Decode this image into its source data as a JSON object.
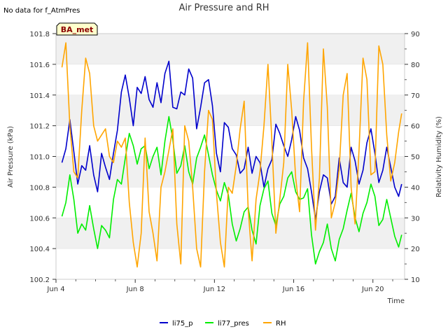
{
  "chart_data": {
    "type": "line",
    "title": "Air Pressure and RH",
    "note": "No data for f_AtmPres",
    "badge": "BA_met",
    "xlabel": "Time",
    "ylabel_left": "Air Pressure (kPa)",
    "ylabel_right": "Relativity Humidity (%)",
    "xlim": [
      4,
      21.6
    ],
    "ylim_left": [
      100.2,
      101.8
    ],
    "ylim_right": [
      10,
      90
    ],
    "x_ticks": [
      {
        "value": 4,
        "label": "Jun 4"
      },
      {
        "value": 8,
        "label": "Jun 8"
      },
      {
        "value": 12,
        "label": "Jun 12"
      },
      {
        "value": 16,
        "label": "Jun 16"
      },
      {
        "value": 20,
        "label": "Jun 20"
      }
    ],
    "y_ticks_left": [
      "100.2",
      "100.4",
      "100.6",
      "100.8",
      "101.0",
      "101.2",
      "101.4",
      "101.6",
      "101.8"
    ],
    "y_ticks_right": [
      "10",
      "20",
      "30",
      "40",
      "50",
      "60",
      "70",
      "80",
      "90"
    ],
    "grid": "horizontal bands",
    "legend_position": "bottom-center",
    "series": [
      {
        "name": "li75_p",
        "axis": "left",
        "color": "#0000cc",
        "x": [
          4.3,
          4.5,
          4.7,
          4.9,
          5.1,
          5.3,
          5.5,
          5.7,
          5.9,
          6.1,
          6.3,
          6.5,
          6.7,
          6.9,
          7.1,
          7.3,
          7.5,
          7.7,
          7.9,
          8.1,
          8.3,
          8.5,
          8.7,
          8.9,
          9.1,
          9.3,
          9.5,
          9.7,
          9.9,
          10.1,
          10.3,
          10.5,
          10.7,
          10.9,
          11.1,
          11.3,
          11.5,
          11.7,
          11.9,
          12.1,
          12.3,
          12.5,
          12.7,
          12.9,
          13.1,
          13.3,
          13.5,
          13.7,
          13.9,
          14.1,
          14.3,
          14.5,
          14.7,
          14.9,
          15.1,
          15.3,
          15.5,
          15.7,
          15.9,
          16.1,
          16.3,
          16.5,
          16.7,
          16.9,
          17.1,
          17.3,
          17.5,
          17.7,
          17.9,
          18.1,
          18.3,
          18.5,
          18.7,
          18.9,
          19.1,
          19.3,
          19.5,
          19.7,
          19.9,
          20.1,
          20.3,
          20.5,
          20.7,
          20.9,
          21.1,
          21.3,
          21.45
        ],
        "values": [
          100.96,
          101.05,
          101.24,
          101.03,
          100.82,
          100.94,
          100.91,
          101.07,
          100.88,
          100.77,
          101.02,
          100.93,
          100.85,
          101.02,
          101.17,
          101.42,
          101.53,
          101.38,
          101.2,
          101.45,
          101.41,
          101.52,
          101.37,
          101.32,
          101.48,
          101.35,
          101.54,
          101.62,
          101.32,
          101.31,
          101.42,
          101.4,
          101.57,
          101.51,
          101.18,
          101.32,
          101.48,
          101.5,
          101.33,
          101.02,
          100.9,
          101.22,
          101.19,
          101.05,
          101.01,
          100.89,
          100.92,
          101.06,
          100.89,
          101.0,
          100.96,
          100.8,
          100.92,
          100.98,
          101.21,
          101.15,
          101.07,
          101.0,
          101.11,
          101.26,
          101.17,
          100.99,
          100.92,
          100.77,
          100.59,
          100.77,
          100.88,
          100.86,
          100.69,
          100.74,
          100.99,
          100.83,
          100.8,
          101.06,
          100.97,
          100.82,
          100.91,
          101.09,
          101.18,
          101.02,
          100.83,
          100.91,
          101.06,
          100.93,
          100.8,
          100.74,
          100.82
        ]
      },
      {
        "name": "li77_pres",
        "axis": "left",
        "color": "#00ee00",
        "x": [
          4.3,
          4.5,
          4.7,
          4.9,
          5.1,
          5.3,
          5.5,
          5.7,
          5.9,
          6.1,
          6.3,
          6.5,
          6.7,
          6.9,
          7.1,
          7.3,
          7.5,
          7.7,
          7.9,
          8.1,
          8.3,
          8.5,
          8.7,
          8.9,
          9.1,
          9.3,
          9.5,
          9.7,
          9.9,
          10.1,
          10.3,
          10.5,
          10.7,
          10.9,
          11.1,
          11.3,
          11.5,
          11.7,
          11.9,
          12.1,
          12.3,
          12.5,
          12.7,
          12.9,
          13.1,
          13.3,
          13.5,
          13.7,
          13.9,
          14.1,
          14.3,
          14.5,
          14.7,
          14.9,
          15.1,
          15.3,
          15.5,
          15.7,
          15.9,
          16.1,
          16.3,
          16.5,
          16.7,
          16.9,
          17.1,
          17.3,
          17.5,
          17.7,
          17.9,
          18.1,
          18.3,
          18.5,
          18.7,
          18.9,
          19.1,
          19.3,
          19.5,
          19.7,
          19.9,
          20.1,
          20.3,
          20.5,
          20.7,
          20.9,
          21.1,
          21.3,
          21.45
        ],
        "values": [
          100.61,
          100.7,
          100.88,
          100.72,
          100.5,
          100.56,
          100.52,
          100.68,
          100.53,
          100.4,
          100.55,
          100.52,
          100.47,
          100.72,
          100.85,
          100.82,
          100.99,
          101.15,
          101.07,
          100.95,
          101.05,
          101.07,
          100.92,
          101.0,
          101.06,
          100.88,
          101.1,
          101.26,
          101.11,
          100.89,
          100.94,
          101.07,
          100.9,
          100.82,
          100.99,
          101.06,
          101.14,
          101.01,
          100.88,
          100.78,
          100.71,
          100.83,
          100.75,
          100.56,
          100.45,
          100.53,
          100.64,
          100.67,
          100.52,
          100.43,
          100.68,
          100.79,
          100.84,
          100.63,
          100.55,
          100.69,
          100.74,
          100.86,
          100.9,
          100.77,
          100.72,
          100.73,
          100.79,
          100.49,
          100.3,
          100.38,
          100.44,
          100.56,
          100.4,
          100.32,
          100.46,
          100.53,
          100.65,
          100.76,
          100.6,
          100.51,
          100.63,
          100.7,
          100.82,
          100.74,
          100.55,
          100.59,
          100.72,
          100.6,
          100.48,
          100.41,
          100.49
        ]
      },
      {
        "name": "RH",
        "axis": "right",
        "color": "#ffa500",
        "x": [
          4.3,
          4.5,
          4.7,
          4.9,
          5.1,
          5.3,
          5.5,
          5.7,
          5.9,
          6.1,
          6.3,
          6.5,
          6.7,
          6.9,
          7.1,
          7.3,
          7.5,
          7.7,
          7.9,
          8.1,
          8.3,
          8.5,
          8.7,
          8.9,
          9.1,
          9.3,
          9.5,
          9.7,
          9.9,
          10.1,
          10.3,
          10.5,
          10.7,
          10.9,
          11.1,
          11.3,
          11.5,
          11.7,
          11.9,
          12.1,
          12.3,
          12.5,
          12.7,
          12.9,
          13.1,
          13.3,
          13.5,
          13.7,
          13.9,
          14.1,
          14.3,
          14.5,
          14.7,
          14.9,
          15.1,
          15.3,
          15.5,
          15.7,
          15.9,
          16.1,
          16.3,
          16.5,
          16.7,
          16.9,
          17.1,
          17.3,
          17.5,
          17.7,
          17.9,
          18.1,
          18.3,
          18.5,
          18.7,
          18.9,
          19.1,
          19.3,
          19.5,
          19.7,
          19.9,
          20.1,
          20.3,
          20.5,
          20.7,
          20.9,
          21.1,
          21.3,
          21.45
        ],
        "values": [
          79,
          87,
          60,
          45,
          43,
          65,
          82,
          77,
          60,
          55,
          57,
          59,
          50,
          48,
          55,
          53,
          56,
          35,
          22,
          14,
          25,
          56,
          32,
          25,
          16,
          40,
          45,
          52,
          59,
          28,
          15,
          60,
          55,
          40,
          20,
          14,
          45,
          65,
          62,
          38,
          22,
          14,
          40,
          38,
          47,
          59,
          68,
          33,
          16,
          36,
          45,
          60,
          80,
          55,
          25,
          36,
          48,
          80,
          65,
          43,
          32,
          68,
          87,
          53,
          26,
          43,
          85,
          66,
          30,
          35,
          46,
          70,
          77,
          40,
          28,
          52,
          82,
          75,
          44,
          45,
          86,
          80,
          57,
          42,
          48,
          58,
          64
        ]
      }
    ]
  }
}
